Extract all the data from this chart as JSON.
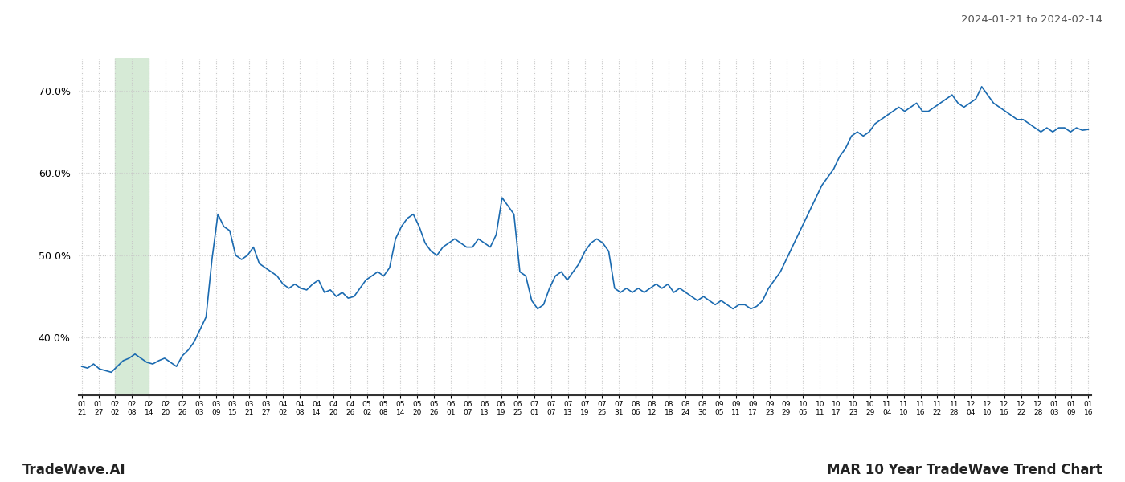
{
  "title_top_right": "2024-01-21 to 2024-02-14",
  "title_bottom_left": "TradeWave.AI",
  "title_bottom_right": "MAR 10 Year TradeWave Trend Chart",
  "line_color": "#1a6ab0",
  "line_width": 1.2,
  "background_color": "#ffffff",
  "grid_color": "#c8c8c8",
  "grid_linestyle": "dotted",
  "highlight_color": "#d6ead6",
  "ylim": [
    33.0,
    74.0
  ],
  "yticks": [
    40.0,
    50.0,
    60.0,
    70.0
  ],
  "xtick_labels": [
    "01-21",
    "01-27",
    "02-02",
    "02-08",
    "02-14",
    "02-20",
    "02-26",
    "03-03",
    "03-09",
    "03-15",
    "03-21",
    "03-27",
    "04-02",
    "04-08",
    "04-14",
    "04-20",
    "04-26",
    "05-02",
    "05-08",
    "05-14",
    "05-20",
    "05-26",
    "06-01",
    "06-07",
    "06-13",
    "06-19",
    "06-25",
    "07-01",
    "07-07",
    "07-13",
    "07-19",
    "07-25",
    "07-31",
    "08-06",
    "08-12",
    "08-18",
    "08-24",
    "08-30",
    "09-05",
    "09-11",
    "09-17",
    "09-23",
    "09-29",
    "10-05",
    "10-11",
    "10-17",
    "10-23",
    "10-29",
    "11-04",
    "11-10",
    "11-16",
    "11-22",
    "11-28",
    "12-04",
    "12-10",
    "12-16",
    "12-22",
    "12-28",
    "01-03",
    "01-09",
    "01-16"
  ],
  "values": [
    36.5,
    36.3,
    36.8,
    36.2,
    36.0,
    35.8,
    36.5,
    37.2,
    37.5,
    38.0,
    37.5,
    37.0,
    36.8,
    37.2,
    37.5,
    37.0,
    36.5,
    37.8,
    38.5,
    39.5,
    41.0,
    42.5,
    49.5,
    55.0,
    53.5,
    53.0,
    50.0,
    49.5,
    50.0,
    51.0,
    49.0,
    48.5,
    48.0,
    47.5,
    46.5,
    46.0,
    46.5,
    46.0,
    45.8,
    46.5,
    47.0,
    45.5,
    45.8,
    45.0,
    45.5,
    44.8,
    45.0,
    46.0,
    47.0,
    47.5,
    48.0,
    47.5,
    48.5,
    52.0,
    53.5,
    54.5,
    55.0,
    53.5,
    51.5,
    50.5,
    50.0,
    51.0,
    51.5,
    52.0,
    51.5,
    51.0,
    51.0,
    52.0,
    51.5,
    51.0,
    52.5,
    57.0,
    56.0,
    55.0,
    48.0,
    47.5,
    44.5,
    43.5,
    44.0,
    46.0,
    47.5,
    48.0,
    47.0,
    48.0,
    49.0,
    50.5,
    51.5,
    52.0,
    51.5,
    50.5,
    46.0,
    45.5,
    46.0,
    45.5,
    46.0,
    45.5,
    46.0,
    46.5,
    46.0,
    46.5,
    45.5,
    46.0,
    45.5,
    45.0,
    44.5,
    45.0,
    44.5,
    44.0,
    44.5,
    44.0,
    43.5,
    44.0,
    44.0,
    43.5,
    43.8,
    44.5,
    46.0,
    47.0,
    48.0,
    49.5,
    51.0,
    52.5,
    54.0,
    55.5,
    57.0,
    58.5,
    59.5,
    60.5,
    62.0,
    63.0,
    64.5,
    65.0,
    64.5,
    65.0,
    66.0,
    66.5,
    67.0,
    67.5,
    68.0,
    67.5,
    68.0,
    68.5,
    67.5,
    67.5,
    68.0,
    68.5,
    69.0,
    69.5,
    68.5,
    68.0,
    68.5,
    69.0,
    70.5,
    69.5,
    68.5,
    68.0,
    67.5,
    67.0,
    66.5,
    66.5,
    66.0,
    65.5,
    65.0,
    65.5,
    65.0,
    65.5,
    65.5,
    65.0,
    65.5,
    65.2,
    65.3
  ],
  "highlight_x_start_label": "02-02",
  "highlight_x_end_label": "02-14"
}
